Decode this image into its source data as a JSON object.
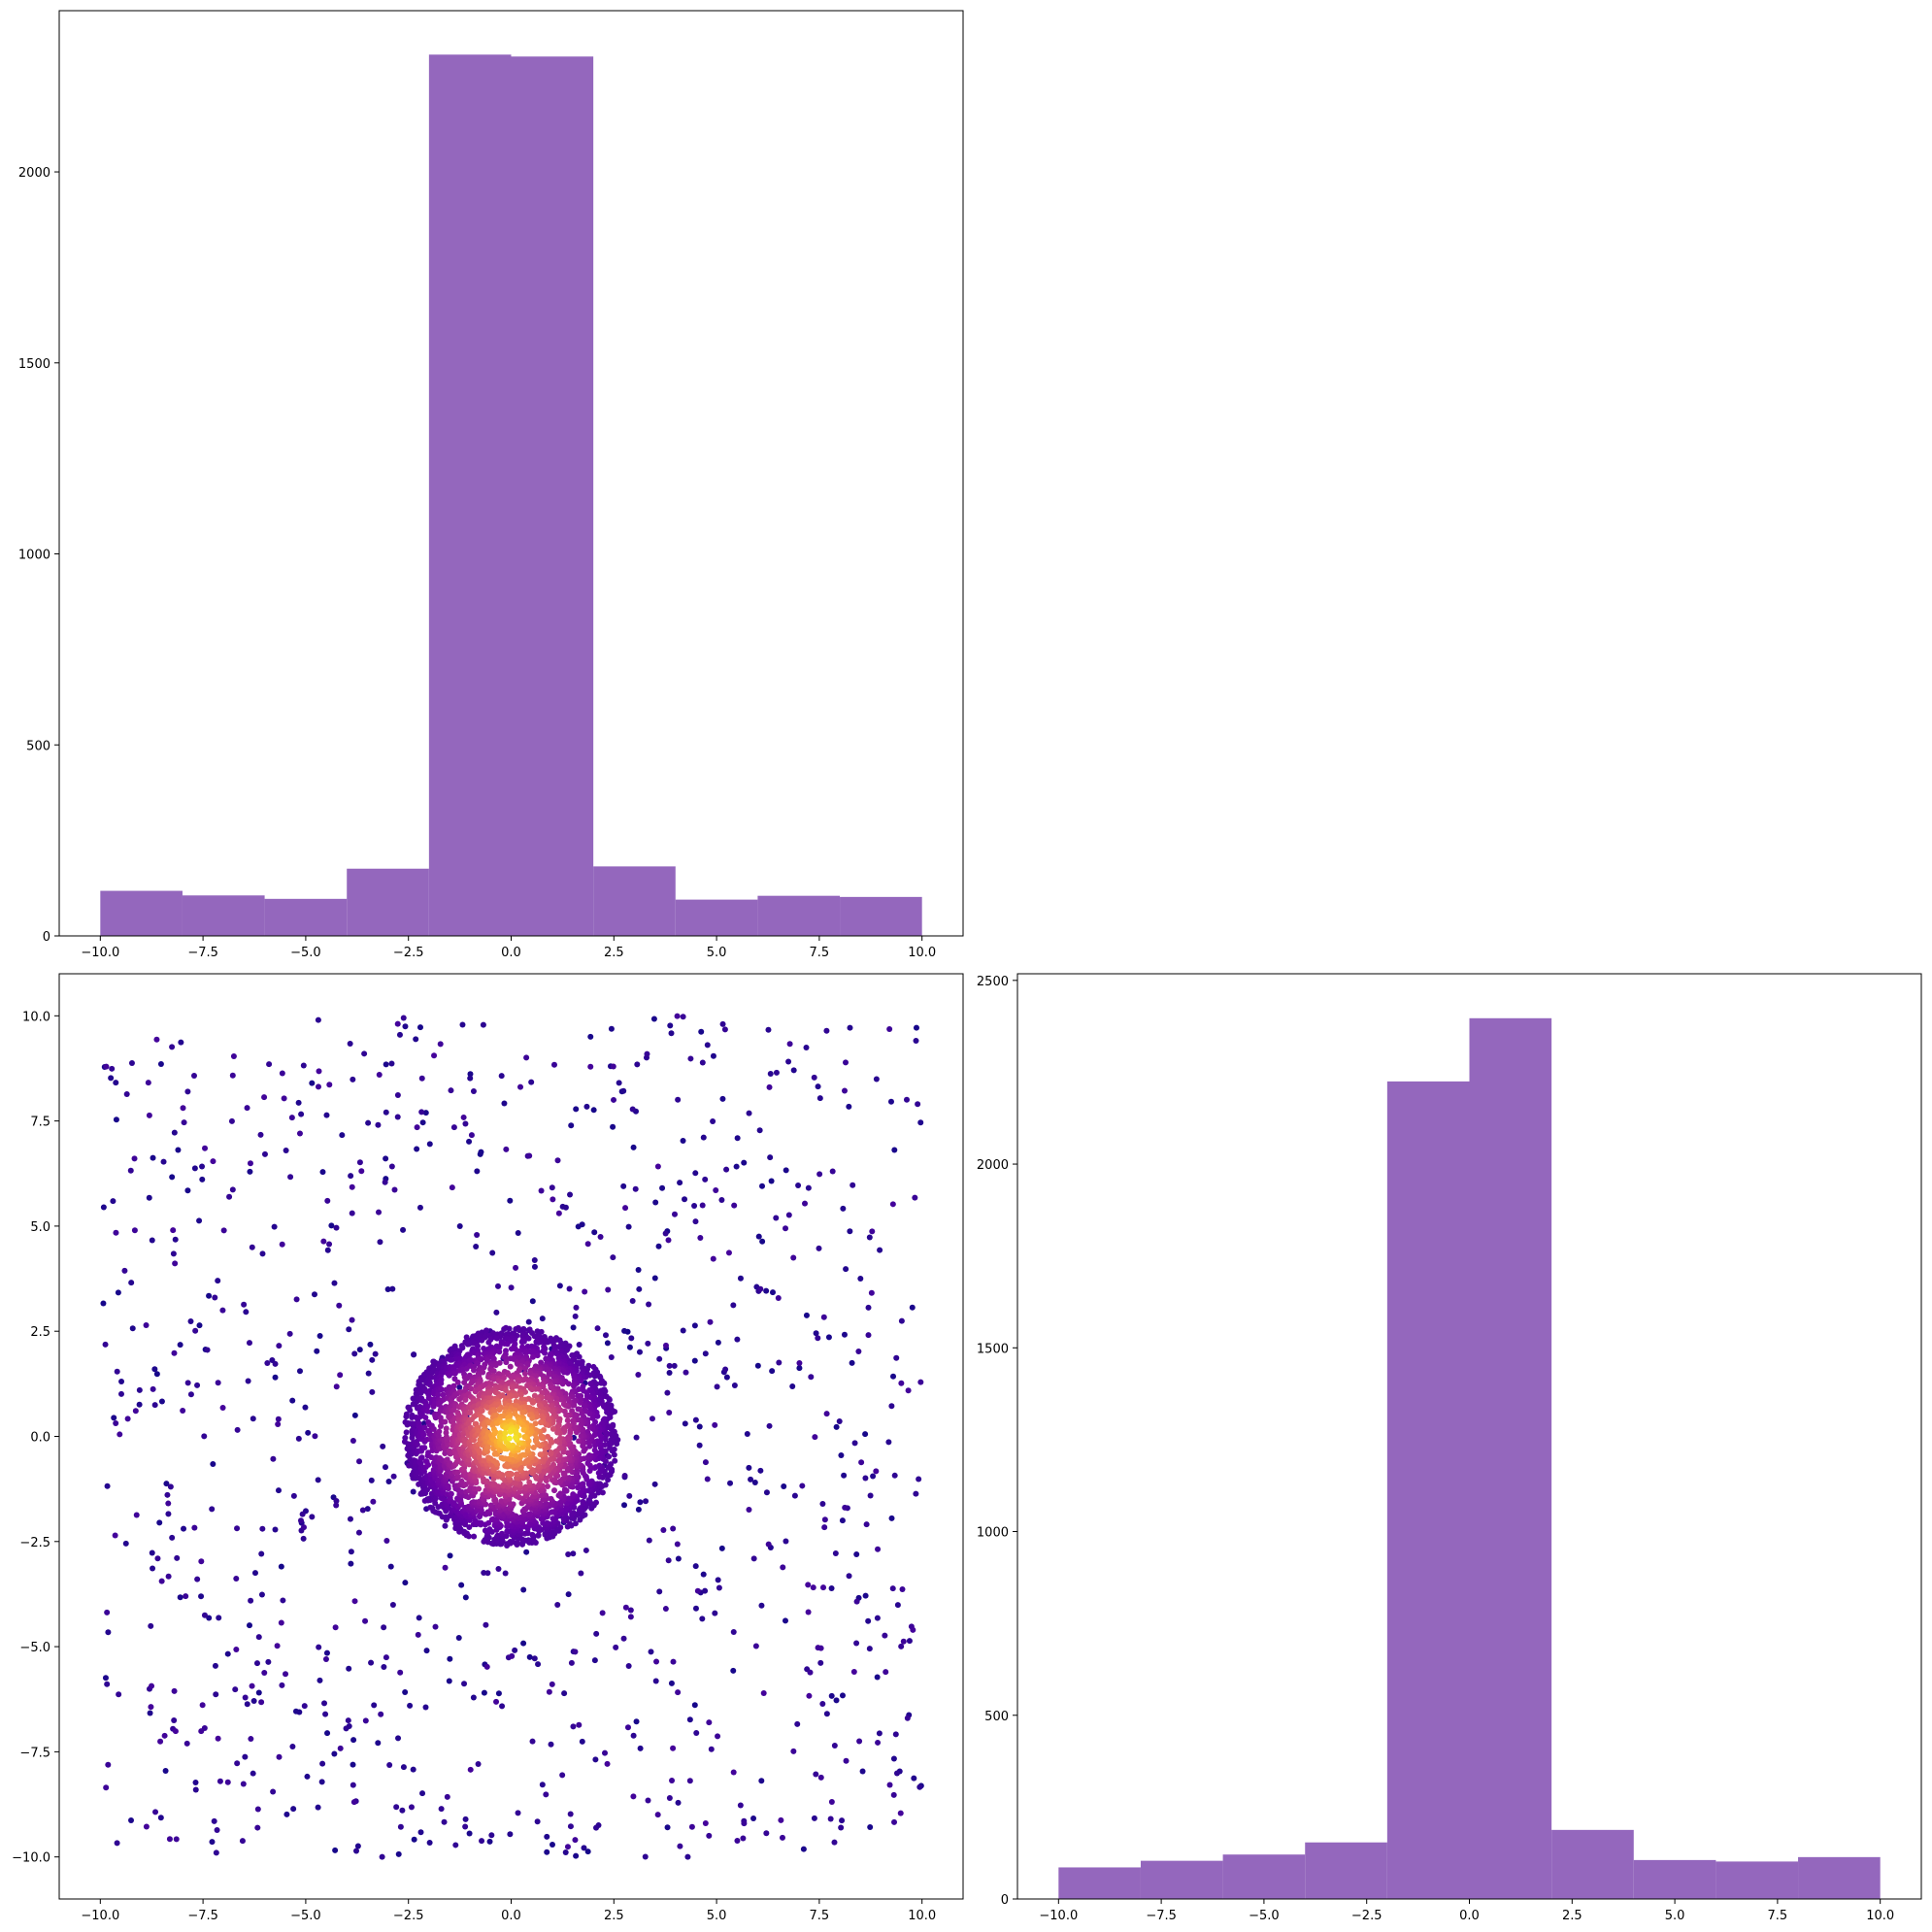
{
  "chart_data": [
    {
      "type": "bar",
      "panel": "top-left",
      "chart_kind": "histogram",
      "bin_edges": [
        -10,
        -8,
        -6,
        -4,
        -2,
        0,
        2,
        4,
        6,
        8,
        10
      ],
      "values": [
        118,
        106,
        97,
        176,
        2307,
        2302,
        182,
        95,
        105,
        102
      ],
      "color": "#9467bd",
      "xlim": [
        -11,
        11
      ],
      "ylim": [
        0,
        2422
      ],
      "xticks": [
        -10.0,
        -7.5,
        -5.0,
        -2.5,
        0.0,
        2.5,
        5.0,
        7.5,
        10.0
      ],
      "xtick_labels": [
        "−10.0",
        "−7.5",
        "−5.0",
        "−2.5",
        "0.0",
        "2.5",
        "5.0",
        "7.5",
        "10.0"
      ],
      "yticks": [
        0,
        500,
        1000,
        1500,
        2000
      ],
      "ytick_labels": [
        "0",
        "500",
        "1000",
        "1500",
        "2000"
      ],
      "grid": false
    },
    {
      "type": "scatter",
      "panel": "bottom-left",
      "description_colormap": "plasma",
      "series": [
        {
          "kind": "uniform",
          "count": 1000,
          "x_range": [
            -10,
            10
          ],
          "y_range": [
            -10,
            10
          ]
        },
        {
          "kind": "radial-cluster",
          "count": 3000,
          "center": [
            0,
            0
          ],
          "max_radius": 2.6
        }
      ],
      "xlim": [
        -11,
        11
      ],
      "ylim": [
        -11,
        11
      ],
      "xticks": [
        -10.0,
        -7.5,
        -5.0,
        -2.5,
        0.0,
        2.5,
        5.0,
        7.5,
        10.0
      ],
      "xtick_labels": [
        "−10.0",
        "−7.5",
        "−5.0",
        "−2.5",
        "0.0",
        "2.5",
        "5.0",
        "7.5",
        "10.0"
      ],
      "yticks": [
        -10.0,
        -7.5,
        -5.0,
        -2.5,
        0.0,
        2.5,
        5.0,
        7.5,
        10.0
      ],
      "ytick_labels": [
        "−10.0",
        "−7.5",
        "−5.0",
        "−2.5",
        "0.0",
        "2.5",
        "5.0",
        "7.5",
        "10.0"
      ],
      "colors": [
        "#0d0887",
        "#6a00a8",
        "#b12a90",
        "#e16462",
        "#fca636",
        "#f0f921"
      ],
      "grid": false
    },
    {
      "type": "bar",
      "panel": "bottom-right",
      "chart_kind": "histogram",
      "bin_edges": [
        -10,
        -8,
        -6,
        -4,
        -2,
        0,
        2,
        4,
        6,
        8,
        10
      ],
      "values": [
        86,
        104,
        121,
        154,
        2225,
        2397,
        188,
        106,
        102,
        114
      ],
      "color": "#9467bd",
      "xlim": [
        -11,
        11
      ],
      "ylim": [
        0,
        2518
      ],
      "xticks": [
        -10.0,
        -7.5,
        -5.0,
        -2.5,
        0.0,
        2.5,
        5.0,
        7.5,
        10.0
      ],
      "xtick_labels": [
        "−10.0",
        "−7.5",
        "−5.0",
        "−2.5",
        "0.0",
        "2.5",
        "5.0",
        "7.5",
        "10.0"
      ],
      "yticks": [
        0,
        500,
        1000,
        1500,
        2000,
        2500
      ],
      "ytick_labels": [
        "0",
        "500",
        "1000",
        "1500",
        "2000",
        "2500"
      ],
      "grid": false
    }
  ]
}
